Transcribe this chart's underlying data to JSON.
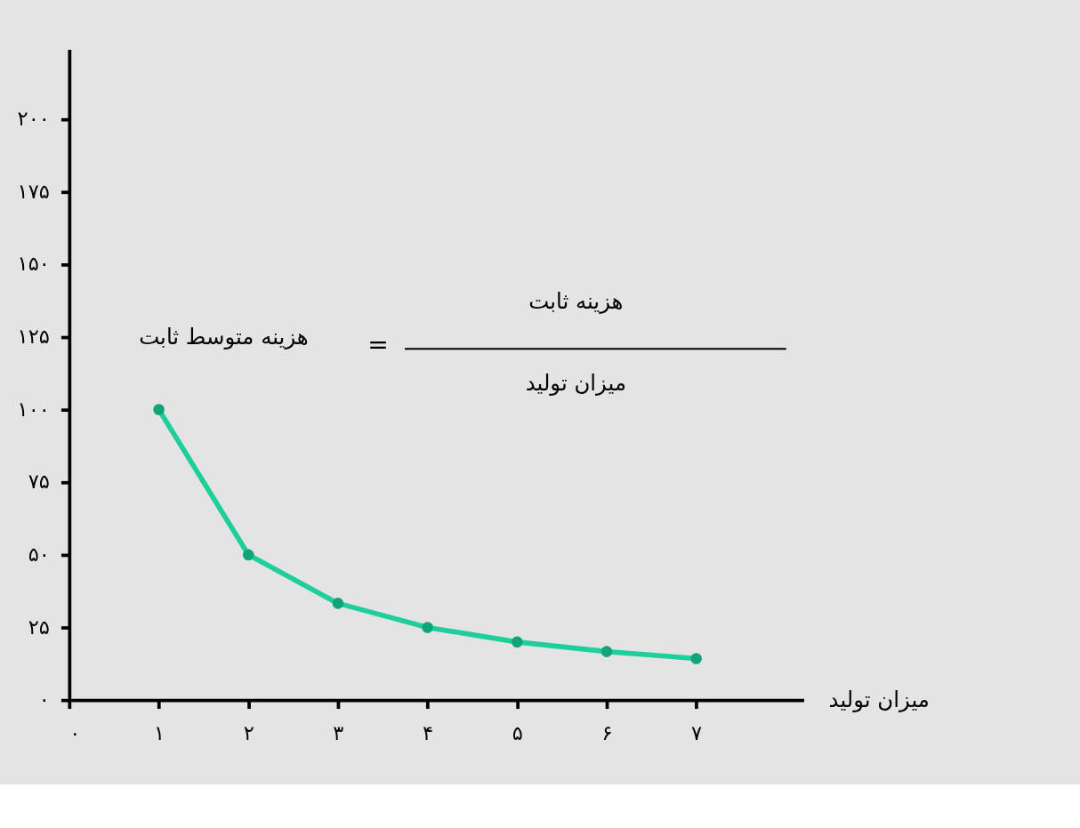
{
  "chart_data": {
    "type": "line",
    "xlabel": "میزان تولید",
    "x": [
      1,
      2,
      3,
      4,
      5,
      6,
      7
    ],
    "series": [
      {
        "color": "#1ecf9c",
        "values": [
          100,
          50,
          33.3,
          25,
          20,
          16.7,
          14.3
        ]
      }
    ],
    "marker": "circle",
    "grid": false,
    "xlim": [
      0,
      8.2
    ],
    "ylim": [
      0,
      224
    ],
    "xticks": [
      {
        "value": 0,
        "label": "۰"
      },
      {
        "value": 1,
        "label": "۱"
      },
      {
        "value": 2,
        "label": "۲"
      },
      {
        "value": 3,
        "label": "۳"
      },
      {
        "value": 4,
        "label": "۴"
      },
      {
        "value": 5,
        "label": "۵"
      },
      {
        "value": 6,
        "label": "۶"
      },
      {
        "value": 7,
        "label": "۷"
      }
    ],
    "yticks": [
      {
        "value": 0,
        "label": "۰"
      },
      {
        "value": 25,
        "label": "۲۵"
      },
      {
        "value": 50,
        "label": "۵۰"
      },
      {
        "value": 75,
        "label": "۷۵"
      },
      {
        "value": 100,
        "label": "۱۰۰"
      },
      {
        "value": 125,
        "label": "۱۲۵"
      },
      {
        "value": 150,
        "label": "۱۵۰"
      },
      {
        "value": 175,
        "label": "۱۷۵"
      },
      {
        "value": 200,
        "label": "۲۰۰"
      }
    ],
    "annotations": [
      "هزینه متوسط ثابت",
      "=",
      "هزینه ثابت",
      "میزان تولید"
    ]
  }
}
